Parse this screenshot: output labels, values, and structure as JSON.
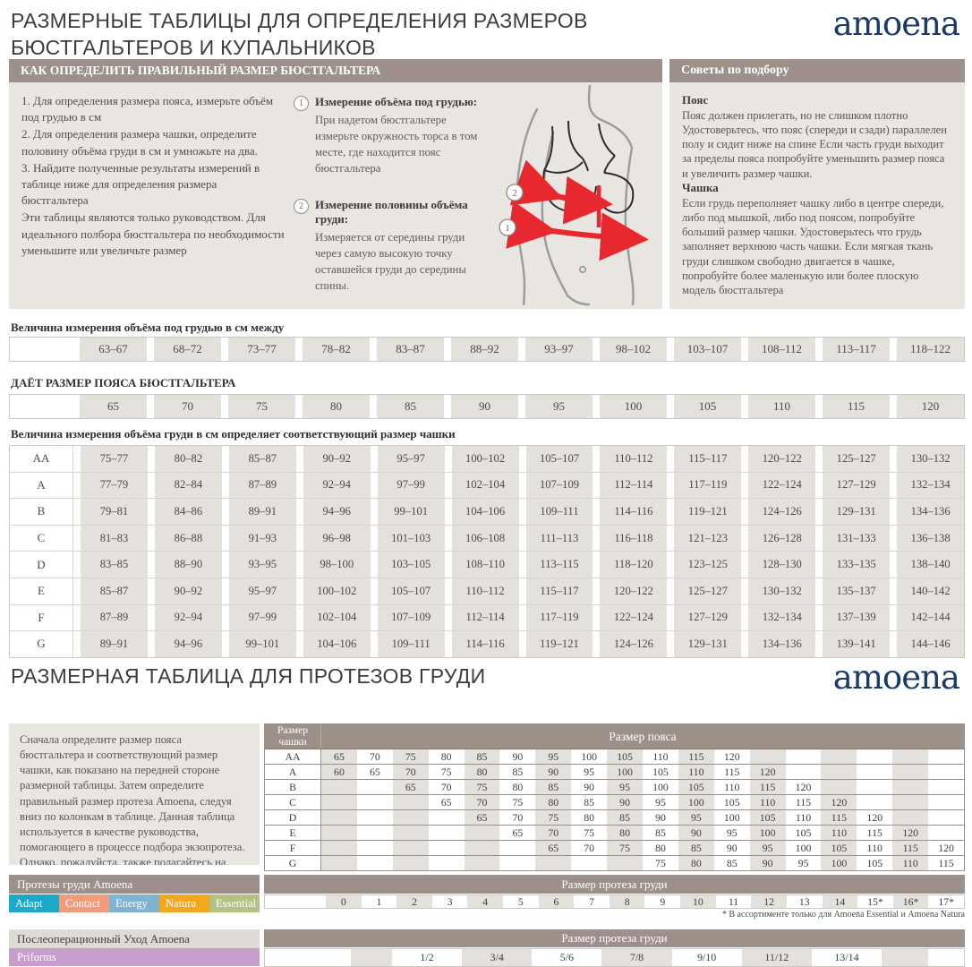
{
  "page": {
    "title1": "РАЗМЕРНЫЕ ТАБЛИЦЫ ДЛЯ ОПРЕДЕЛЕНИЯ РАЗМЕРОВ БЮСТГАЛЬТЕРОВ И КУПАЛЬНИКОВ",
    "title2": "РАЗМЕРНАЯ ТАБЛИЦА ДЛЯ ПРОТЕЗОВ ГРУДИ",
    "logo": "amoena"
  },
  "how_to": {
    "header": "КАК ОПРЕДЕЛИТЬ ПРАВИЛЬНЫЙ РАЗМЕР БЮСТГАЛЬТЕРА",
    "steps": [
      "1. Для определения размера пояса, измерьте объём под грудью в см",
      "2.  Для определения размера чашки, определите половину объёма груди в см и умножьте на два.",
      "3.  Найдите полученные результаты измерений в таблице ниже для определения размера бюстгальтера",
      "Эти таблицы являются только руководством. Для идеального полбора бюстгальтера по необходимости уменьшите или увеличьте размер"
    ],
    "measures": [
      {
        "num": "1",
        "title": "Измерение объёма под грудью:",
        "text": "При надетом бюстгальтере измерьте окружность торса в том месте, где находится пояс бюстгальтера"
      },
      {
        "num": "2",
        "title": "Измерение половины объёма груди:",
        "text": "Измеряется от середины груди через самую высокую точку оставшейся груди до середины спины."
      }
    ],
    "figure_marker_1": "1",
    "figure_marker_2": "2"
  },
  "tips": {
    "header": "Советы по подбору",
    "belt_title": "Пояс",
    "belt_text": "Пояс должен прилегать, но не слишком плотно Удостоверьтесь, что пояс (спереди и сзади) параллелен полу и сидит ниже на спине Если часть груди выходит за пределы пояса попробуйте уменьшить размер пояса и увеличить размер чашки.",
    "cup_title": "Чашка",
    "cup_text": "Если грудь переполняет чашку либо в центре спереди, либо под мышкой, либо под поясом, попробуйте больший размер чашки. Удостоверьтесь что грудь заполняет верхнюю часть чашки. Если мягкая ткань груди слишком свободно двигается в чашке, попробуйте более маленькую или более плоскую модель бюстгальтера"
  },
  "size_tables": {
    "underbust_label": "Величина измерения объёма под грудью в см между",
    "underbust_ranges": [
      "63–67",
      "68–72",
      "73–77",
      "78–82",
      "83–87",
      "88–92",
      "93–97",
      "98–102",
      "103–107",
      "108–112",
      "113–117",
      "118–122"
    ],
    "band_label": "ДАЁТ РАЗМЕР ПОЯСА БЮСТГАЛЬТЕРА",
    "band_sizes": [
      "65",
      "70",
      "75",
      "80",
      "85",
      "90",
      "95",
      "100",
      "105",
      "110",
      "115",
      "120"
    ],
    "cup_label": "Величина измерения объёма груди в см определяет соответствующий размер чашки",
    "cup_rows": [
      {
        "cup": "AA",
        "values": [
          "75–77",
          "80–82",
          "85–87",
          "90–92",
          "95–97",
          "100–102",
          "105–107",
          "110–112",
          "115–117",
          "120–122",
          "125–127",
          "130–132"
        ]
      },
      {
        "cup": "A",
        "values": [
          "77–79",
          "82–84",
          "87–89",
          "92–94",
          "97–99",
          "102–104",
          "107–109",
          "112–114",
          "117–119",
          "122–124",
          "127–129",
          "132–134"
        ]
      },
      {
        "cup": "B",
        "values": [
          "79–81",
          "84–86",
          "89–91",
          "94–96",
          "99–101",
          "104–106",
          "109–111",
          "114–116",
          "119–121",
          "124–126",
          "129–131",
          "134–136"
        ]
      },
      {
        "cup": "C",
        "values": [
          "81–83",
          "86–88",
          "91–93",
          "96–98",
          "101–103",
          "106–108",
          "111–113",
          "116–118",
          "121–123",
          "126–128",
          "131–133",
          "136–138"
        ]
      },
      {
        "cup": "D",
        "values": [
          "83–85",
          "88–90",
          "93–95",
          "98–100",
          "103–105",
          "108–110",
          "113–115",
          "118–120",
          "123–125",
          "128–130",
          "133–135",
          "138–140"
        ]
      },
      {
        "cup": "E",
        "values": [
          "85–87",
          "90–92",
          "95–97",
          "100–102",
          "105–107",
          "110–112",
          "115–117",
          "120–122",
          "125–127",
          "130–132",
          "135–137",
          "140–142"
        ]
      },
      {
        "cup": "F",
        "values": [
          "87–89",
          "92–94",
          "97–99",
          "102–104",
          "107–109",
          "112–114",
          "117–119",
          "122–124",
          "127–129",
          "132–134",
          "137–139",
          "142–144"
        ]
      },
      {
        "cup": "G",
        "values": [
          "89–91",
          "94–96",
          "99–101",
          "104–106",
          "109–111",
          "114–116",
          "119–121",
          "124–126",
          "129–131",
          "134–136",
          "139–141",
          "144–146"
        ]
      }
    ]
  },
  "prosthesis": {
    "intro": "Сначала определите размер пояса бюстгальтера и соответствующий размер чашки, как показано на передней стороне размерной таблицы. Затем определите правильный размер протеза Amoena, следуя вниз по колонкам в таблице. Данная таблица используется в качестве руководства, помогающего в процессе подбора экзопротеза. Однако, пожалуйста, также полагайтесь на свой опыт и индивидуальные ощущения.",
    "cup_header": "Размер чашки",
    "band_header": "Размер пояса",
    "rows": [
      {
        "cup": "AA",
        "values": [
          "65",
          "70",
          "75",
          "80",
          "85",
          "90",
          "95",
          "100",
          "105",
          "110",
          "115",
          "120",
          "",
          "",
          "",
          "",
          "",
          ""
        ]
      },
      {
        "cup": "A",
        "values": [
          "60",
          "65",
          "70",
          "75",
          "80",
          "85",
          "90",
          "95",
          "100",
          "105",
          "110",
          "115",
          "120",
          "",
          "",
          "",
          "",
          ""
        ]
      },
      {
        "cup": "B",
        "values": [
          "",
          "",
          "65",
          "70",
          "75",
          "80",
          "85",
          "90",
          "95",
          "100",
          "105",
          "110",
          "115",
          "120",
          "",
          "",
          "",
          ""
        ]
      },
      {
        "cup": "C",
        "values": [
          "",
          "",
          "",
          "65",
          "70",
          "75",
          "80",
          "85",
          "90",
          "95",
          "100",
          "105",
          "110",
          "115",
          "120",
          "",
          "",
          ""
        ]
      },
      {
        "cup": "D",
        "values": [
          "",
          "",
          "",
          "",
          "65",
          "70",
          "75",
          "80",
          "85",
          "90",
          "95",
          "100",
          "105",
          "110",
          "115",
          "120",
          "",
          ""
        ]
      },
      {
        "cup": "E",
        "values": [
          "",
          "",
          "",
          "",
          "",
          "65",
          "70",
          "75",
          "80",
          "85",
          "90",
          "95",
          "100",
          "105",
          "110",
          "115",
          "120",
          ""
        ]
      },
      {
        "cup": "F",
        "values": [
          "",
          "",
          "",
          "",
          "",
          "",
          "65",
          "70",
          "75",
          "80",
          "85",
          "90",
          "95",
          "100",
          "105",
          "110",
          "115",
          "120"
        ]
      },
      {
        "cup": "G",
        "values": [
          "",
          "",
          "",
          "",
          "",
          "",
          "",
          "",
          "",
          "75",
          "80",
          "85",
          "90",
          "95",
          "100",
          "105",
          "110",
          "115"
        ]
      }
    ],
    "forms_header": "Протезы груди Amoena",
    "form_chips": [
      {
        "label": "Adapt",
        "color": "#1ca9c7"
      },
      {
        "label": "Contact",
        "color": "#f09b7b"
      },
      {
        "label": "Energy",
        "color": "#80b3cd"
      },
      {
        "label": "Natura",
        "color": "#f3a71d"
      },
      {
        "label": "Essential",
        "color": "#b3c284"
      }
    ],
    "size_header": "Размер протеза груди",
    "sizes": [
      "0",
      "1",
      "2",
      "3",
      "4",
      "5",
      "6",
      "7",
      "8",
      "9",
      "10",
      "11",
      "12",
      "13",
      "14",
      "15*",
      "16*",
      "17*"
    ],
    "footnote": "* В ассортименте только для  Amoena Essential и Amoena Natura",
    "postop_header": "Послеоперационный Уход Amoena",
    "postop_chip": {
      "label": "Priforms",
      "color": "#c79ecb"
    },
    "priform_size_header": "Размер протеза груди",
    "priform_sizes": [
      "1/2",
      "3/4",
      "5/6",
      "7/8",
      "9/10",
      "11/12",
      "13/14"
    ]
  }
}
